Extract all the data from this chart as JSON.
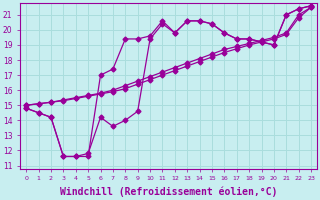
{
  "background_color": "#c8eef0",
  "grid_color": "#aadddd",
  "line_color": "#990099",
  "marker": "D",
  "markersize": 2.5,
  "linewidth": 0.9,
  "xlabel": "Windchill (Refroidissement éolien,°C)",
  "xlabel_fontsize": 7,
  "xlim": [
    -0.5,
    23.5
  ],
  "ylim": [
    10.8,
    21.8
  ],
  "yticks": [
    11,
    12,
    13,
    14,
    15,
    16,
    17,
    18,
    19,
    20,
    21
  ],
  "xticks": [
    0,
    1,
    2,
    3,
    4,
    5,
    6,
    7,
    8,
    9,
    10,
    11,
    12,
    13,
    14,
    15,
    16,
    17,
    18,
    19,
    20,
    21,
    22,
    23
  ],
  "series": [
    [
      14.8,
      14.5,
      14.2,
      11.6,
      11.6,
      11.6,
      17.0,
      17.4,
      19.4,
      19.4,
      19.6,
      20.6,
      19.8,
      20.6,
      20.6,
      20.4,
      19.8,
      19.4,
      19.4,
      19.2,
      19.0,
      21.0,
      21.4,
      21.6
    ],
    [
      14.8,
      14.5,
      14.2,
      11.6,
      11.6,
      11.8,
      14.2,
      13.6,
      14.0,
      14.6,
      19.4,
      20.4,
      19.8,
      20.6,
      20.6,
      20.4,
      19.8,
      19.4,
      19.4,
      19.2,
      19.0,
      21.0,
      21.4,
      21.6
    ],
    [
      15.0,
      15.1,
      15.2,
      15.35,
      15.5,
      15.65,
      15.8,
      16.0,
      16.3,
      16.6,
      16.9,
      17.2,
      17.5,
      17.8,
      18.1,
      18.4,
      18.7,
      18.9,
      19.1,
      19.3,
      19.5,
      19.8,
      21.0,
      21.5
    ],
    [
      15.0,
      15.1,
      15.2,
      15.3,
      15.45,
      15.6,
      15.75,
      15.9,
      16.1,
      16.4,
      16.7,
      17.0,
      17.3,
      17.6,
      17.9,
      18.2,
      18.5,
      18.75,
      19.0,
      19.2,
      19.4,
      19.7,
      20.8,
      21.5
    ]
  ]
}
